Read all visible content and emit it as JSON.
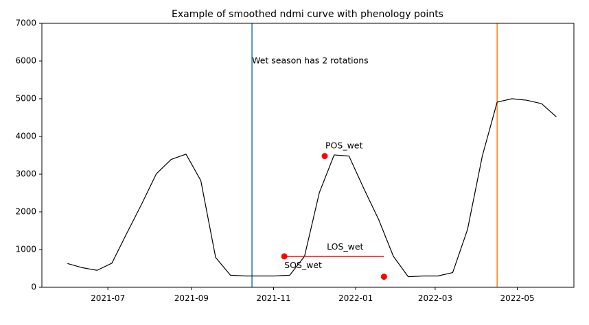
{
  "chart_data": {
    "type": "line",
    "title": "Example of smoothed ndmi curve with phenology points",
    "xlabel": "",
    "ylabel": "",
    "ylim": [
      0,
      7000
    ],
    "xlim": [
      "2021-05-13",
      "2022-06-12"
    ],
    "grid": false,
    "x_ticks": [
      "2021-07-01",
      "2021-09-01",
      "2021-11-01",
      "2022-01-01",
      "2022-03-01",
      "2022-05-01"
    ],
    "x_tick_labels": [
      "2021-07",
      "2021-09",
      "2021-11",
      "2022-01",
      "2022-03",
      "2022-05"
    ],
    "y_ticks": [
      0,
      1000,
      2000,
      3000,
      4000,
      5000,
      6000,
      7000
    ],
    "y_tick_labels": [
      "0",
      "1000",
      "2000",
      "3000",
      "4000",
      "5000",
      "6000",
      "7000"
    ],
    "series": [
      {
        "color": "#000000",
        "x": [
          "2021-06-01",
          "2021-06-12",
          "2021-06-23",
          "2021-07-04",
          "2021-07-15",
          "2021-07-26",
          "2021-08-06",
          "2021-08-17",
          "2021-08-28",
          "2021-09-08",
          "2021-09-19",
          "2021-09-30",
          "2021-10-11",
          "2021-10-22",
          "2021-11-02",
          "2021-11-13",
          "2021-11-24",
          "2021-12-05",
          "2021-12-16",
          "2021-12-27",
          "2022-01-07",
          "2022-01-18",
          "2022-01-29",
          "2022-02-09",
          "2022-02-20",
          "2022-03-03",
          "2022-03-14",
          "2022-03-25",
          "2022-04-05",
          "2022-04-16",
          "2022-04-27",
          "2022-05-08",
          "2022-05-19",
          "2022-05-30"
        ],
        "y": [
          630,
          520,
          450,
          640,
          1430,
          2200,
          3010,
          3390,
          3530,
          2830,
          790,
          320,
          300,
          300,
          300,
          320,
          820,
          2510,
          3510,
          3480,
          2620,
          1800,
          820,
          280,
          300,
          300,
          390,
          1530,
          3480,
          4910,
          5000,
          4960,
          4870,
          4520
        ]
      }
    ],
    "vlines": [
      {
        "x": "2021-10-16",
        "color": "#1f77b4"
      },
      {
        "x": "2022-04-16",
        "color": "#ff7f0e"
      }
    ],
    "points": [
      {
        "x": "2021-11-09",
        "y": 820,
        "color": "#ff0000",
        "label": "SOS_wet"
      },
      {
        "x": "2021-12-09",
        "y": 3480,
        "color": "#ff0000",
        "label": "POS_wet"
      },
      {
        "x": "2022-01-22",
        "y": 280,
        "color": "#ff0000",
        "label": ""
      }
    ],
    "hlines": [
      {
        "x0": "2021-11-09",
        "x1": "2022-01-22",
        "y": 820,
        "color": "#ff0000",
        "label": "LOS_wet"
      }
    ],
    "text_annotations": [
      {
        "x": "2021-10-16",
        "y": 6000,
        "text": "Wet season has 2 rotations"
      }
    ]
  }
}
